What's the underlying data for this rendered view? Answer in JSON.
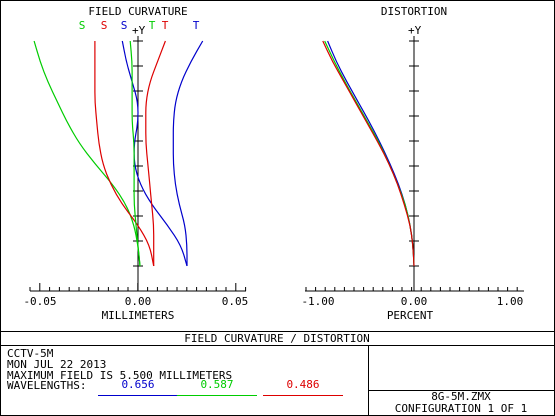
{
  "colors": {
    "blue": "#0000cc",
    "green": "#00cc00",
    "red": "#dd0000",
    "teal": "#008f8f",
    "frame": "#000000"
  },
  "chart_data": [
    {
      "type": "line",
      "title": "FIELD CURVATURE",
      "xlabel": "MILLIMETERS",
      "ylabel": "+Y",
      "xlim": [
        -0.05,
        0.05
      ],
      "ylim": [
        0,
        5.5
      ],
      "xticks": [
        "-0.05",
        "0.00",
        "0.05"
      ],
      "legend_letters": [
        {
          "text": "S",
          "color": "#00cc00"
        },
        {
          "text": "S",
          "color": "#dd0000"
        },
        {
          "text": "S",
          "color": "#0000cc"
        },
        {
          "text": "T",
          "color": "#00cc00"
        },
        {
          "text": "T",
          "color": "#dd0000"
        },
        {
          "text": "T",
          "color": "#0000cc"
        }
      ],
      "series": [
        {
          "kind": "sagittal",
          "color": "#00cc00",
          "y": [
            0,
            0.5,
            1,
            1.5,
            2,
            2.5,
            3,
            3.5,
            4,
            4.5,
            5,
            5.5
          ],
          "x": [
            0.001,
            0.0,
            -0.002,
            -0.006,
            -0.013,
            -0.022,
            -0.03,
            -0.036,
            -0.041,
            -0.046,
            -0.05,
            -0.053
          ]
        },
        {
          "kind": "sagittal",
          "color": "#dd0000",
          "y": [
            0,
            0.5,
            1,
            1.5,
            2,
            2.5,
            3,
            3.5,
            4,
            4.5,
            5,
            5.5
          ],
          "x": [
            0.008,
            0.006,
            0.0,
            -0.008,
            -0.014,
            -0.018,
            -0.02,
            -0.021,
            -0.022,
            -0.022,
            -0.022,
            -0.022
          ]
        },
        {
          "kind": "sagittal",
          "color": "#0000cc",
          "y": [
            0,
            0.5,
            1,
            1.5,
            2,
            2.5,
            3,
            3.5,
            4,
            4.5,
            5,
            5.5
          ],
          "x": [
            0.025,
            0.022,
            0.015,
            0.007,
            0.001,
            -0.002,
            -0.002,
            0.0,
            0.0,
            -0.003,
            -0.006,
            -0.008
          ]
        },
        {
          "kind": "tangential",
          "color": "#00cc00",
          "y": [
            0,
            0.5,
            1,
            1.5,
            2,
            2.5,
            3,
            3.5,
            4,
            4.5,
            5,
            5.5
          ],
          "x": [
            0.001,
            0.0,
            -0.001,
            -0.002,
            -0.002,
            -0.002,
            -0.002,
            -0.003,
            -0.003,
            -0.003,
            -0.003,
            -0.004
          ]
        },
        {
          "kind": "tangential",
          "color": "#dd0000",
          "y": [
            0,
            0.5,
            1,
            1.5,
            2,
            2.5,
            3,
            3.5,
            4,
            4.5,
            5,
            5.5
          ],
          "x": [
            0.008,
            0.008,
            0.008,
            0.007,
            0.006,
            0.005,
            0.004,
            0.004,
            0.004,
            0.006,
            0.01,
            0.014
          ]
        },
        {
          "kind": "tangential",
          "color": "#0000cc",
          "y": [
            0,
            0.5,
            1,
            1.5,
            2,
            2.5,
            3,
            3.5,
            4,
            4.5,
            5,
            5.5
          ],
          "x": [
            0.025,
            0.025,
            0.024,
            0.021,
            0.019,
            0.018,
            0.018,
            0.018,
            0.019,
            0.022,
            0.027,
            0.033
          ]
        }
      ]
    },
    {
      "type": "line",
      "title": "DISTORTION",
      "xlabel": "PERCENT",
      "ylabel": "+Y",
      "xlim": [
        -1.0,
        1.0
      ],
      "ylim": [
        0,
        5.5
      ],
      "xticks": [
        "-1.00",
        "0.00",
        "1.00"
      ],
      "series": [
        {
          "color": "#0000cc",
          "y": [
            0,
            0.5,
            1,
            1.5,
            2,
            2.5,
            3,
            3.5,
            4,
            4.5,
            5,
            5.5
          ],
          "x": [
            0.0,
            -0.01,
            -0.04,
            -0.09,
            -0.16,
            -0.25,
            -0.35,
            -0.46,
            -0.58,
            -0.7,
            -0.81,
            -0.9
          ]
        },
        {
          "color": "#00cc00",
          "y": [
            0,
            0.5,
            1,
            1.5,
            2,
            2.5,
            3,
            3.5,
            4,
            4.5,
            5,
            5.5
          ],
          "x": [
            0.0,
            -0.01,
            -0.04,
            -0.09,
            -0.17,
            -0.26,
            -0.36,
            -0.48,
            -0.6,
            -0.72,
            -0.83,
            -0.93
          ]
        },
        {
          "color": "#dd0000",
          "y": [
            0,
            0.5,
            1,
            1.5,
            2,
            2.5,
            3,
            3.5,
            4,
            4.5,
            5,
            5.5
          ],
          "x": [
            0.0,
            -0.01,
            -0.04,
            -0.1,
            -0.17,
            -0.26,
            -0.37,
            -0.49,
            -0.61,
            -0.73,
            -0.85,
            -0.95
          ]
        }
      ]
    }
  ],
  "footer": {
    "banner": "FIELD CURVATURE / DISTORTION",
    "lines": [
      "CCTV-5M",
      "MON JUL 22 2013",
      "MAXIMUM FIELD IS 5.500 MILLIMETERS",
      "WAVELENGTHS:"
    ],
    "wavelengths": [
      {
        "value": "0.656",
        "color": "#0000cc"
      },
      {
        "value": "0.587",
        "color": "#00cc00"
      },
      {
        "value": "0.486",
        "color": "#dd0000"
      }
    ],
    "file_name": "8G-5M.ZMX",
    "configuration": "CONFIGURATION 1 OF 1"
  }
}
